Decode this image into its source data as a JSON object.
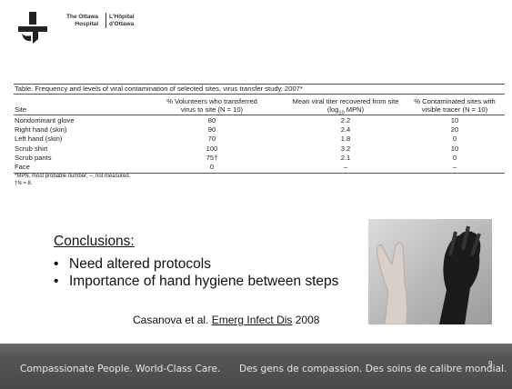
{
  "logo": {
    "english": [
      "The Ottawa",
      "Hospital"
    ],
    "french": [
      "L'Hôpital",
      "d'Ottawa"
    ]
  },
  "table": {
    "caption": "Table. Frequency and levels of viral contamination of selected sites, virus transfer study, 2007*",
    "headers": [
      [
        "Site"
      ],
      [
        "% Volunteers who transferred",
        "virus to site (N = 10)"
      ],
      [
        "Mean viral titer recovered from site",
        "(log",
        "10",
        " MPN)"
      ],
      [
        "% Contaminated sites with",
        "visible tracer (N = 10)"
      ]
    ],
    "rows": [
      [
        "Nondominant glove",
        80,
        2.2,
        10
      ],
      [
        "Right hand (skin)",
        90,
        2.4,
        20
      ],
      [
        "Left hand (skin)",
        70,
        1.8,
        0
      ],
      [
        "Scrub shirt",
        100,
        3.2,
        10
      ],
      [
        "Scrub pants",
        "75†",
        2.1,
        0
      ],
      [
        "Face",
        0,
        "–",
        "–"
      ]
    ],
    "footnotes": [
      "*MPN, most probable number; –, not measured.",
      "†N = 8."
    ]
  },
  "conclusions": {
    "heading": "Conclusions:",
    "bullets": [
      "Need altered protocols",
      "Importance of hand hygiene between steps"
    ]
  },
  "citation": {
    "authors": "Casanova et al. ",
    "journal": "Emerg Infect Dis",
    "year": " 2008"
  },
  "footer": {
    "english": "Compassionate People. World-Class Care.",
    "french": "Des gens de compassion. Des soins de calibre mondial.",
    "page": "9"
  }
}
